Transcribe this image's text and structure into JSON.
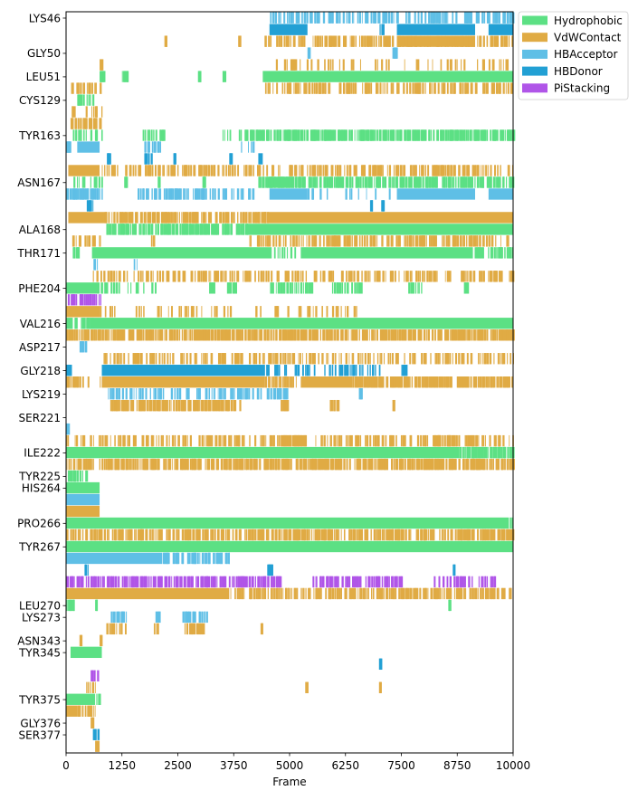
{
  "chart_data": {
    "type": "heatmap",
    "title": "",
    "xlabel": "Frame",
    "ylabel": "",
    "xlim": [
      0,
      10000
    ],
    "xticks": [
      0,
      1250,
      2500,
      3750,
      5000,
      6250,
      7500,
      8750,
      10000
    ],
    "xtick_labels": [
      "0",
      "1250",
      "2500",
      "3750",
      "5000",
      "6250",
      "7500",
      "8750",
      "10000"
    ],
    "residues": [
      "LYS46",
      "GLY50",
      "LEU51",
      "CYS129",
      "TYR163",
      "ASN167",
      "ALA168",
      "THR171",
      "PHE204",
      "VAL216",
      "ASP217",
      "GLY218",
      "LYS219",
      "SER221",
      "ILE222",
      "TYR225",
      "HIS264",
      "PRO266",
      "TYR267",
      "LEU270",
      "LYS273",
      "ASN343",
      "TYR345",
      "TYR375",
      "GLY376",
      "SER377"
    ],
    "legend": {
      "placement": "top-right (outside plot)",
      "entries": [
        {
          "name": "Hydrophobic",
          "color": "#5ce084"
        },
        {
          "name": "VdWContact",
          "color": "#e0ab44"
        },
        {
          "name": "HBAcceptor",
          "color": "#5fbfe6"
        },
        {
          "name": "HBDonor",
          "color": "#22a0d4"
        },
        {
          "name": "PiStacking",
          "color": "#b055e8"
        }
      ]
    },
    "rows": [
      {
        "type": "HBAcceptor",
        "label": "LYS46",
        "solid": [],
        "sparse": [
          [
            4550,
            10000,
            0.35
          ]
        ]
      },
      {
        "type": "HBDonor",
        "solid": [
          [
            4550,
            5400
          ],
          [
            7400,
            9150
          ],
          [
            9450,
            10000
          ]
        ],
        "sparse": [
          [
            7000,
            7100,
            0.5
          ]
        ]
      },
      {
        "type": "VdWContact",
        "solid": [
          [
            7400,
            9150
          ]
        ],
        "sparse": [
          [
            2200,
            2250,
            1
          ],
          [
            3850,
            3900,
            1
          ],
          [
            4400,
            10000,
            0.35
          ]
        ]
      },
      {
        "type": "HBAcceptor",
        "label": "GLY50",
        "solid": [],
        "sparse": [
          [
            5400,
            5500,
            0.5
          ],
          [
            7300,
            7400,
            0.5
          ]
        ]
      },
      {
        "type": "VdWContact",
        "solid": [],
        "sparse": [
          [
            750,
            800,
            1
          ],
          [
            4550,
            10000,
            0.12
          ]
        ]
      },
      {
        "type": "Hydrophobic",
        "label": "LEU51",
        "solid": [
          [
            4400,
            10000
          ]
        ],
        "sparse": [
          [
            750,
            850,
            1
          ],
          [
            1250,
            1400,
            0.5
          ],
          [
            3500,
            3550,
            1
          ],
          [
            2950,
            3000,
            1
          ]
        ]
      },
      {
        "type": "VdWContact",
        "solid": [],
        "sparse": [
          [
            100,
            800,
            0.3
          ],
          [
            4400,
            10000,
            0.35
          ]
        ]
      },
      {
        "type": "Hydrophobic",
        "label": "CYS129",
        "solid": [],
        "sparse": [
          [
            250,
            700,
            0.4
          ]
        ]
      },
      {
        "type": "VdWContact",
        "solid": [],
        "sparse": [
          [
            100,
            800,
            0.25
          ]
        ]
      },
      {
        "type": "VdWContact",
        "solid": [],
        "sparse": [
          [
            100,
            800,
            0.5
          ]
        ]
      },
      {
        "type": "Hydrophobic",
        "label": "TYR163",
        "solid": [],
        "sparse": [
          [
            100,
            800,
            0.3
          ],
          [
            1700,
            2200,
            0.3
          ],
          [
            3500,
            3700,
            0.4
          ],
          [
            3850,
            10000,
            0.55
          ]
        ]
      },
      {
        "type": "HBAcceptor",
        "solid": [
          [
            250,
            750
          ]
        ],
        "sparse": [
          [
            0,
            100,
            1
          ],
          [
            1750,
            2100,
            0.3
          ],
          [
            3900,
            4200,
            0.3
          ]
        ]
      },
      {
        "type": "HBDonor",
        "solid": [
          [
            4300,
            4400
          ]
        ],
        "sparse": [
          [
            900,
            1000,
            0.6
          ],
          [
            1750,
            1900,
            0.5
          ],
          [
            2400,
            2450,
            1
          ],
          [
            3650,
            3700,
            1
          ]
        ]
      },
      {
        "type": "VdWContact",
        "solid": [
          [
            50,
            750
          ]
        ],
        "sparse": [
          [
            800,
            10000,
            0.3
          ]
        ]
      },
      {
        "type": "Hydrophobic",
        "label": "ASN167",
        "solid": [
          [
            4500,
            5100
          ]
        ],
        "sparse": [
          [
            100,
            800,
            0.3
          ],
          [
            1300,
            1350,
            1
          ],
          [
            2050,
            2100,
            1
          ],
          [
            3050,
            3100,
            1
          ],
          [
            4300,
            10000,
            0.55
          ]
        ]
      },
      {
        "type": "HBAcceptor",
        "solid": [
          [
            4550,
            5400
          ],
          [
            7400,
            9150
          ],
          [
            9450,
            10000
          ]
        ],
        "sparse": [
          [
            0,
            850,
            0.5
          ],
          [
            1600,
            4200,
            0.35
          ],
          [
            5400,
            7400,
            0.15
          ]
        ]
      },
      {
        "type": "HBDonor",
        "solid": [],
        "sparse": [
          [
            450,
            600,
            0.5
          ],
          [
            6800,
            6850,
            1
          ],
          [
            7050,
            7100,
            1
          ]
        ]
      },
      {
        "type": "VdWContact",
        "solid": [
          [
            50,
            850
          ],
          [
            4500,
            10000
          ]
        ],
        "sparse": [
          [
            850,
            4500,
            0.45
          ]
        ]
      },
      {
        "type": "Hydrophobic",
        "label": "ALA168",
        "solid": [
          [
            4050,
            10000
          ]
        ],
        "sparse": [
          [
            900,
            4050,
            0.55
          ]
        ]
      },
      {
        "type": "VdWContact",
        "solid": [],
        "sparse": [
          [
            100,
            800,
            0.3
          ],
          [
            1900,
            2000,
            0.5
          ],
          [
            4100,
            10000,
            0.35
          ]
        ]
      },
      {
        "type": "Hydrophobic",
        "label": "THR171",
        "solid": [
          [
            580,
            4600
          ],
          [
            5250,
            9100
          ]
        ],
        "sparse": [
          [
            4600,
            5250,
            0.3
          ],
          [
            9100,
            10000,
            0.45
          ],
          [
            150,
            300,
            0.5
          ]
        ]
      },
      {
        "type": "HBAcceptor",
        "solid": [],
        "sparse": [
          [
            600,
            700,
            0.6
          ],
          [
            1500,
            1600,
            0.5
          ]
        ]
      },
      {
        "type": "VdWContact",
        "solid": [],
        "sparse": [
          [
            600,
            10000,
            0.28
          ]
        ]
      },
      {
        "type": "Hydrophobic",
        "label": "PHE204",
        "solid": [
          [
            0,
            750
          ]
        ],
        "sparse": [
          [
            750,
            2000,
            0.25
          ],
          [
            3200,
            3300,
            1
          ],
          [
            3600,
            3800,
            0.5
          ],
          [
            4550,
            5500,
            0.45
          ],
          [
            5950,
            6600,
            0.3
          ],
          [
            7550,
            8000,
            0.2
          ],
          [
            8900,
            9000,
            1
          ]
        ]
      },
      {
        "type": "PiStacking",
        "solid": [],
        "sparse": [
          [
            0,
            800,
            0.5
          ]
        ]
      },
      {
        "type": "VdWContact",
        "solid": [
          [
            0,
            750
          ]
        ],
        "sparse": [
          [
            750,
            6600,
            0.12
          ]
        ]
      },
      {
        "type": "Hydrophobic",
        "label": "VAL216",
        "solid": [
          [
            0,
            150
          ],
          [
            600,
            10000
          ]
        ],
        "sparse": [
          [
            150,
            600,
            0.5
          ]
        ]
      },
      {
        "type": "VdWContact",
        "solid": [],
        "sparse": [
          [
            0,
            10000,
            0.55
          ]
        ]
      },
      {
        "type": "HBAcceptor",
        "label": "ASP217",
        "solid": [],
        "sparse": [
          [
            250,
            450,
            0.5
          ]
        ]
      },
      {
        "type": "VdWContact",
        "solid": [],
        "sparse": [
          [
            800,
            10000,
            0.25
          ]
        ]
      },
      {
        "type": "HBDonor",
        "label": "GLY218",
        "solid": [
          [
            800,
            4450
          ]
        ],
        "sparse": [
          [
            0,
            100,
            1
          ],
          [
            4450,
            7000,
            0.3
          ],
          [
            7500,
            7600,
            1
          ]
        ]
      },
      {
        "type": "VdWContact",
        "solid": [
          [
            800,
            4450
          ],
          [
            5250,
            6400
          ]
        ],
        "sparse": [
          [
            0,
            800,
            0.3
          ],
          [
            4450,
            5250,
            0.4
          ],
          [
            6400,
            10000,
            0.65
          ]
        ]
      },
      {
        "type": "HBAcceptor",
        "label": "LYS219",
        "solid": [],
        "sparse": [
          [
            900,
            4800,
            0.3
          ],
          [
            4850,
            4950,
            1
          ],
          [
            6550,
            6600,
            1
          ]
        ]
      },
      {
        "type": "VdWContact",
        "solid": [],
        "sparse": [
          [
            950,
            3900,
            0.55
          ],
          [
            4800,
            4950,
            1
          ],
          [
            5900,
            6100,
            0.5
          ],
          [
            7300,
            7350,
            1
          ]
        ]
      },
      {
        "type": "VdWContact",
        "label": "SER221",
        "solid": [],
        "sparse": []
      },
      {
        "type": "HBAcceptor",
        "solid": [],
        "sparse": [
          [
            0,
            50,
            1
          ]
        ]
      },
      {
        "type": "VdWContact",
        "solid": [],
        "sparse": [
          [
            0,
            10000,
            0.25
          ],
          [
            4800,
            5400,
            0.7
          ],
          [
            8200,
            8800,
            0.6
          ]
        ]
      },
      {
        "type": "Hydrophobic",
        "label": "ILE222",
        "solid": [
          [
            0,
            8800
          ]
        ],
        "sparse": [
          [
            8800,
            10000,
            0.55
          ]
        ]
      },
      {
        "type": "VdWContact",
        "solid": [],
        "sparse": [
          [
            0,
            10000,
            0.5
          ]
        ]
      },
      {
        "type": "Hydrophobic",
        "label": "TYR225",
        "solid": [],
        "sparse": [
          [
            0,
            500,
            0.35
          ]
        ]
      },
      {
        "type": "Hydrophobic",
        "label": "HIS264",
        "solid": [
          [
            0,
            750
          ]
        ],
        "sparse": []
      },
      {
        "type": "HBAcceptor",
        "solid": [
          [
            0,
            750
          ]
        ],
        "sparse": []
      },
      {
        "type": "VdWContact",
        "solid": [
          [
            0,
            750
          ]
        ],
        "sparse": []
      },
      {
        "type": "Hydrophobic",
        "label": "PRO266",
        "solid": [
          [
            0,
            9900
          ]
        ],
        "sparse": [
          [
            9900,
            10000,
            0.5
          ]
        ]
      },
      {
        "type": "VdWContact",
        "solid": [],
        "sparse": [
          [
            0,
            10000,
            0.4
          ]
        ]
      },
      {
        "type": "Hydrophobic",
        "label": "TYR267",
        "solid": [
          [
            0,
            10000
          ]
        ],
        "sparse": []
      },
      {
        "type": "HBAcceptor",
        "solid": [
          [
            0,
            2150
          ]
        ],
        "sparse": [
          [
            2150,
            3650,
            0.5
          ]
        ]
      },
      {
        "type": "HBDonor",
        "solid": [],
        "sparse": [
          [
            400,
            500,
            0.5
          ],
          [
            4500,
            4600,
            1
          ],
          [
            8650,
            8700,
            1
          ]
        ]
      },
      {
        "type": "PiStacking",
        "solid": [],
        "sparse": [
          [
            0,
            4800,
            0.45
          ],
          [
            5500,
            7500,
            0.5
          ],
          [
            8200,
            9600,
            0.3
          ]
        ]
      },
      {
        "type": "VdWContact",
        "solid": [
          [
            0,
            3650
          ]
        ],
        "sparse": [
          [
            3650,
            10000,
            0.45
          ]
        ]
      },
      {
        "type": "Hydrophobic",
        "label": "LEU270",
        "solid": [],
        "sparse": [
          [
            0,
            200,
            0.5
          ],
          [
            650,
            700,
            1
          ],
          [
            8550,
            8600,
            1
          ]
        ]
      },
      {
        "type": "HBAcceptor",
        "label": "LYS273",
        "solid": [],
        "sparse": [
          [
            1000,
            1350,
            0.4
          ],
          [
            2000,
            2100,
            0.5
          ],
          [
            2550,
            3300,
            0.3
          ]
        ]
      },
      {
        "type": "VdWContact",
        "solid": [],
        "sparse": [
          [
            900,
            1350,
            0.5
          ],
          [
            1950,
            2050,
            0.5
          ],
          [
            2650,
            3100,
            0.5
          ],
          [
            4350,
            4400,
            1
          ]
        ]
      },
      {
        "type": "VdWContact",
        "label": "ASN343",
        "solid": [],
        "sparse": [
          [
            300,
            350,
            1
          ],
          [
            750,
            800,
            1
          ]
        ]
      },
      {
        "type": "Hydrophobic",
        "label": "TYR345",
        "solid": [
          [
            100,
            800
          ]
        ],
        "sparse": []
      },
      {
        "type": "HBDonor",
        "solid": [],
        "sparse": [
          [
            7000,
            7050,
            1
          ]
        ]
      },
      {
        "type": "PiStacking",
        "solid": [],
        "sparse": [
          [
            550,
            700,
            0.5
          ]
        ]
      },
      {
        "type": "VdWContact",
        "solid": [],
        "sparse": [
          [
            450,
            700,
            0.4
          ],
          [
            5350,
            5400,
            1
          ],
          [
            7000,
            7050,
            1
          ]
        ]
      },
      {
        "type": "Hydrophobic",
        "label": "TYR375",
        "solid": [
          [
            0,
            650
          ]
        ],
        "sparse": [
          [
            650,
            750,
            0.5
          ]
        ]
      },
      {
        "type": "VdWContact",
        "solid": [
          [
            0,
            250
          ]
        ],
        "sparse": [
          [
            250,
            650,
            0.5
          ]
        ]
      },
      {
        "type": "VdWContact",
        "label": "GLY376",
        "solid": [],
        "sparse": [
          [
            550,
            600,
            1
          ]
        ]
      },
      {
        "type": "HBDonor",
        "label": "SER377",
        "solid": [
          [
            700,
            750
          ]
        ],
        "sparse": [
          [
            600,
            650,
            1
          ]
        ]
      },
      {
        "type": "VdWContact",
        "solid": [
          [
            650,
            750
          ]
        ],
        "sparse": []
      }
    ]
  }
}
